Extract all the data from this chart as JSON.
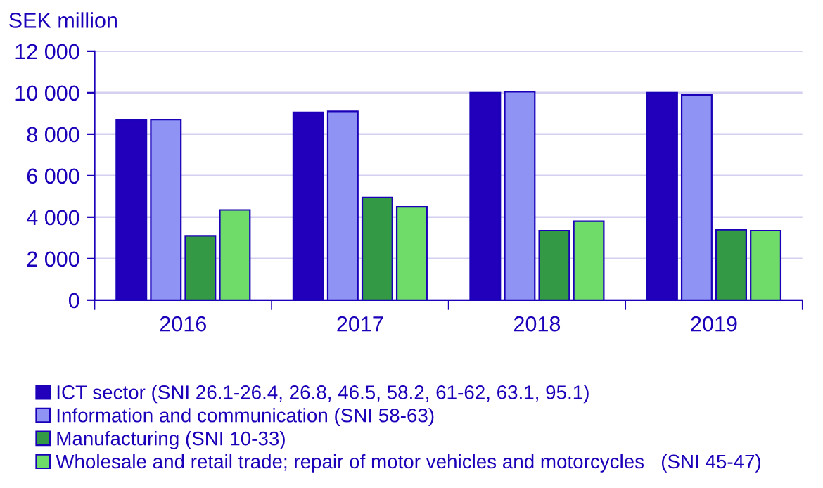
{
  "chart_data": {
    "type": "bar",
    "ylabel": "SEK million",
    "categories": [
      "2016",
      "2017",
      "2018",
      "2019"
    ],
    "series": [
      {
        "name": "ICT sector (SNI 26.1-26.4, 26.8, 46.5, 58.2, 61-62, 63.1, 95.1)",
        "color": "#2200bb",
        "values": [
          8700,
          9050,
          10000,
          10000
        ]
      },
      {
        "name": "Information and communication (SNI 58-63)",
        "color": "#8f94f4",
        "values": [
          8700,
          9100,
          10050,
          9900
        ]
      },
      {
        "name": "Manufacturing (SNI 10-33)",
        "color": "#339944",
        "values": [
          3100,
          4950,
          3350,
          3400
        ]
      },
      {
        "name": "Wholesale and retail trade; repair of motor vehicles and motorcycles   (SNI 45-47)",
        "color": "#6fdc6a",
        "values": [
          4350,
          4500,
          3800,
          3350
        ]
      }
    ],
    "ylim": [
      0,
      12000
    ],
    "yticks": [
      0,
      {
        "value": 2000,
        "label": "2 000"
      },
      {
        "value": 4000,
        "label": "4 000"
      },
      {
        "value": 6000,
        "label": "6 000"
      },
      {
        "value": 8000,
        "label": "8 000"
      },
      {
        "value": 10000,
        "label": "10 000"
      },
      {
        "value": 12000,
        "label": "12 000"
      }
    ],
    "grid": "y",
    "legend": "bottom"
  }
}
